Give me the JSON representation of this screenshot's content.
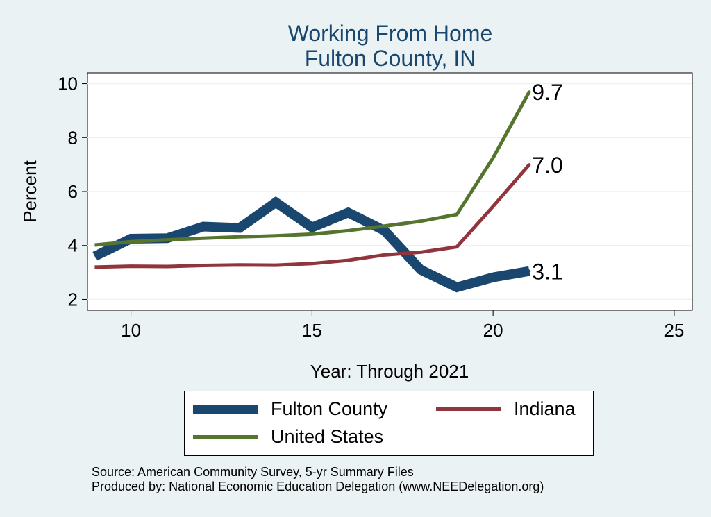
{
  "chart_data": {
    "type": "line",
    "title": "Working From Home",
    "subtitle": "Fulton County, IN",
    "xlabel": "Year: Through 2021",
    "ylabel": "Percent",
    "xlim": [
      8.8,
      25.5
    ],
    "ylim": [
      1.6,
      10.4
    ],
    "xticks": [
      10,
      15,
      20,
      25
    ],
    "yticks": [
      2,
      4,
      6,
      8,
      10
    ],
    "grid": "horizontal",
    "legend_position": "bottom",
    "x": [
      9,
      10,
      11,
      12,
      13,
      14,
      15,
      16,
      17,
      18,
      19,
      20,
      21
    ],
    "series": [
      {
        "name": "Fulton County",
        "color": "#1a476f",
        "values": [
          3.6,
          4.25,
          4.27,
          4.7,
          4.65,
          5.6,
          4.67,
          5.22,
          4.55,
          3.1,
          2.45,
          2.82,
          3.05
        ],
        "end_label": "3.1"
      },
      {
        "name": "Indiana",
        "color": "#90353b",
        "values": [
          3.2,
          3.23,
          3.22,
          3.26,
          3.28,
          3.27,
          3.33,
          3.45,
          3.65,
          3.75,
          3.95,
          5.45,
          7.0
        ],
        "end_label": "7.0"
      },
      {
        "name": "United States",
        "color": "#55752f",
        "values": [
          4.02,
          4.14,
          4.21,
          4.27,
          4.32,
          4.36,
          4.42,
          4.55,
          4.72,
          4.9,
          5.15,
          7.25,
          9.7
        ],
        "end_label": "9.7"
      }
    ]
  },
  "source": {
    "line1": "Source: American Community Survey, 5-yr Summary Files",
    "line2": "Produced by: National Economic Education Delegation (www.NEEDelegation.org)"
  }
}
